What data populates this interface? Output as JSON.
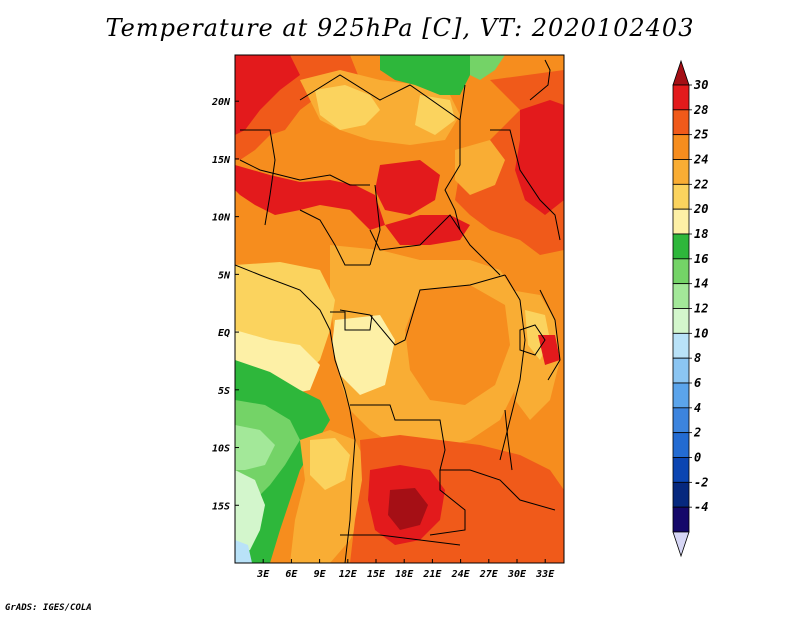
{
  "title": "Temperature at 925hPa [C], VT: 2020102403",
  "footer": "GrADS: IGES/COLA",
  "map": {
    "type": "filled-contour-map",
    "variable": "Temperature at 925hPa",
    "units": "C",
    "valid_time": "2020102403",
    "region": "Central Africa",
    "lon_labels": [
      "3E",
      "6E",
      "9E",
      "12E",
      "15E",
      "18E",
      "21E",
      "24E",
      "27E",
      "30E",
      "33E"
    ],
    "lat_labels": [
      "20N",
      "15N",
      "10N",
      "5N",
      "EQ",
      "5S",
      "10S",
      "15S"
    ],
    "lon_range_deg": [
      0,
      35
    ],
    "lat_range_deg": [
      -20,
      24
    ]
  },
  "colorbar": {
    "labels": [
      "30",
      "28",
      "25",
      "24",
      "22",
      "20",
      "18",
      "16",
      "14",
      "12",
      "10",
      "8",
      "6",
      "4",
      "2",
      "0",
      "-2",
      "-4"
    ],
    "colors": [
      "#a50f15",
      "#e31a1c",
      "#f05a1a",
      "#f68d1e",
      "#f9ad34",
      "#fbd35e",
      "#fdf0a6",
      "#2eb73b",
      "#74d367",
      "#a3e899",
      "#d3f6cc",
      "#b9e2f8",
      "#8bc5f2",
      "#5ba4eb",
      "#3c84de",
      "#236bd2",
      "#0b45b2",
      "#06287e",
      "#15086a",
      "#d6d6f5"
    ]
  }
}
